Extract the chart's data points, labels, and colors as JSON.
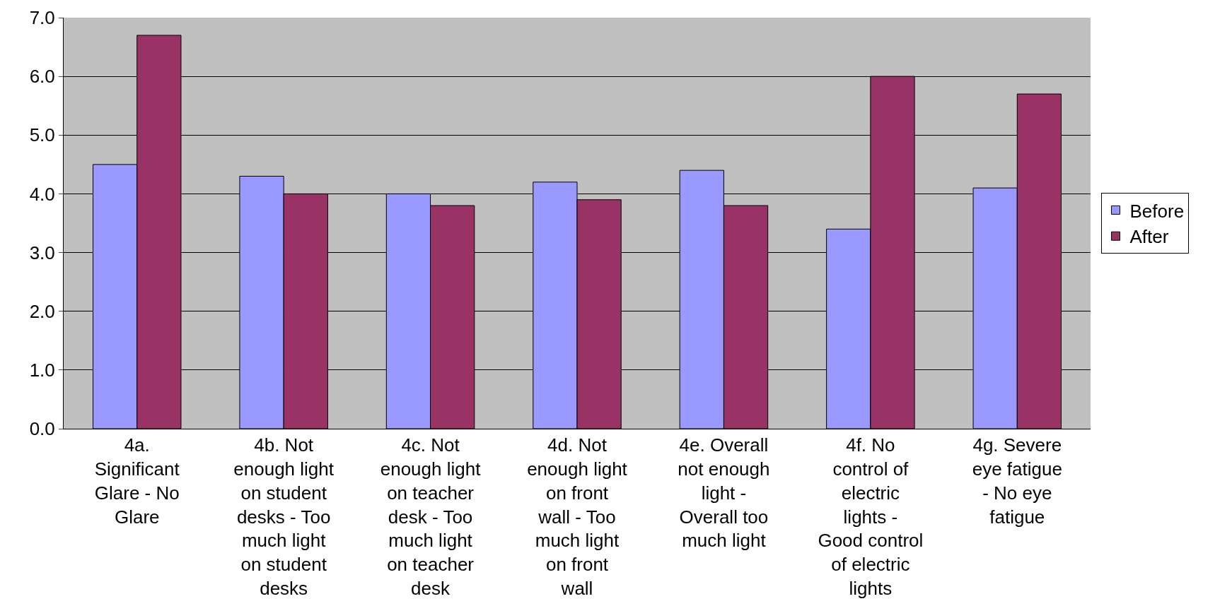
{
  "chart_data": {
    "type": "bar",
    "categories": [
      "4a. Significant Glare - No Glare",
      "4b. Not enough light on student desks - Too much light on student desks",
      "4c. Not enough light on teacher desk - Too much light on teacher desk",
      "4d. Not enough light on front wall - Too much light on front wall",
      "4e. Overall not enough light - Overall too much light",
      "4f. No control of electric lights - Good control of electric lights",
      "4g. Severe eye fatigue - No eye fatigue"
    ],
    "series": [
      {
        "name": "Before",
        "color": "#9999ff",
        "values": [
          4.5,
          4.3,
          4.0,
          4.2,
          4.4,
          3.4,
          4.1
        ]
      },
      {
        "name": "After",
        "color": "#993366",
        "values": [
          6.7,
          4.0,
          3.8,
          3.9,
          3.8,
          6.0,
          5.7
        ]
      }
    ],
    "ylim": [
      0,
      7
    ],
    "yticks": [
      {
        "value": 0,
        "label": "0.0"
      },
      {
        "value": 1,
        "label": "1.0"
      },
      {
        "value": 2,
        "label": "2.0"
      },
      {
        "value": 3,
        "label": "3.0"
      },
      {
        "value": 4,
        "label": "4.0"
      },
      {
        "value": 5,
        "label": "5.0"
      },
      {
        "value": 6,
        "label": "6.0"
      },
      {
        "value": 7,
        "label": "7.0"
      }
    ],
    "grid": "y",
    "legend": "right"
  }
}
